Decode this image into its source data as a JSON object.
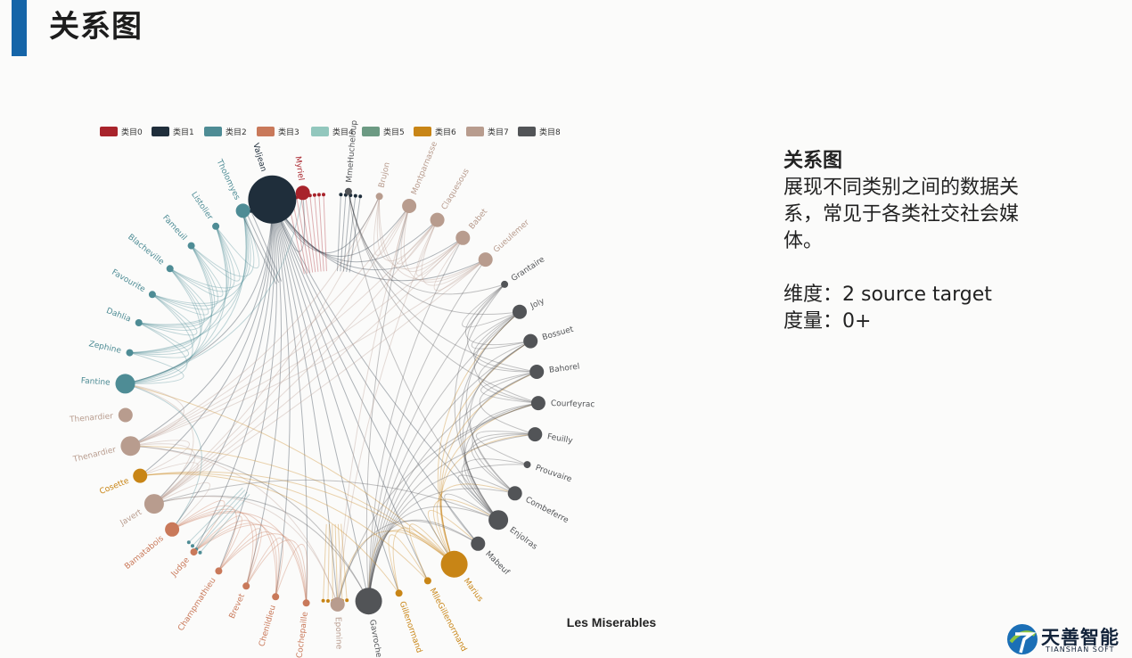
{
  "page": {
    "title": "关系图"
  },
  "side_panel": {
    "heading": "关系图",
    "description": "展现不同类别之间的数据关系，常见于各类社交社会媒体。",
    "dimension": "维度：2 source target",
    "measure": "度量：0+"
  },
  "logo": {
    "name": "天善智能",
    "subtitle": "TIANSHAN SOFT"
  },
  "diagram": {
    "title": "Les Miserables",
    "legend": [
      {
        "name": "类目0",
        "color": "#a8232b"
      },
      {
        "name": "类目1",
        "color": "#1f2e3b"
      },
      {
        "name": "类目2",
        "color": "#4e8c95"
      },
      {
        "name": "类目3",
        "color": "#c9795a"
      },
      {
        "name": "类目4",
        "color": "#92c7bd"
      },
      {
        "name": "类目5",
        "color": "#6c9a83"
      },
      {
        "name": "类目6",
        "color": "#c88516"
      },
      {
        "name": "类目7",
        "color": "#b89c8e"
      },
      {
        "name": "类目8",
        "color": "#525457"
      }
    ],
    "nodes": [
      {
        "name": "Myriel",
        "category": 0,
        "size": 2
      },
      {
        "name": "Valjean",
        "category": 1,
        "size": 7
      },
      {
        "name": "Tholomyes",
        "category": 2,
        "size": 2
      },
      {
        "name": "Listolier",
        "category": 2,
        "size": 1
      },
      {
        "name": "Fameuil",
        "category": 2,
        "size": 1
      },
      {
        "name": "Blacheville",
        "category": 2,
        "size": 1
      },
      {
        "name": "Favourite",
        "category": 2,
        "size": 1
      },
      {
        "name": "Dahlia",
        "category": 2,
        "size": 1
      },
      {
        "name": "Zephine",
        "category": 2,
        "size": 1
      },
      {
        "name": "Fantine",
        "category": 2,
        "size": 3
      },
      {
        "name": "Thenardier",
        "category": 7,
        "size": 2
      },
      {
        "name": "Thenardier",
        "category": 7,
        "size": 3
      },
      {
        "name": "Cosette",
        "category": 6,
        "size": 2
      },
      {
        "name": "Javert",
        "category": 7,
        "size": 3
      },
      {
        "name": "Bamatabois",
        "category": 3,
        "size": 2
      },
      {
        "name": "Judge",
        "category": 3,
        "size": 1
      },
      {
        "name": "Champmathieu",
        "category": 3,
        "size": 1
      },
      {
        "name": "Brevet",
        "category": 3,
        "size": 1
      },
      {
        "name": "Chenildieu",
        "category": 3,
        "size": 1
      },
      {
        "name": "Cochepaille",
        "category": 3,
        "size": 1
      },
      {
        "name": "Eponine",
        "category": 7,
        "size": 2
      },
      {
        "name": "Gavroche",
        "category": 8,
        "size": 4
      },
      {
        "name": "Gillenormand",
        "category": 6,
        "size": 1
      },
      {
        "name": "MlleGillenormand",
        "category": 6,
        "size": 1
      },
      {
        "name": "Marius",
        "category": 6,
        "size": 4
      },
      {
        "name": "Mabeuf",
        "category": 8,
        "size": 2
      },
      {
        "name": "Enjolras",
        "category": 8,
        "size": 3
      },
      {
        "name": "Combeferre",
        "category": 8,
        "size": 2
      },
      {
        "name": "Prouvaire",
        "category": 8,
        "size": 1
      },
      {
        "name": "Feuilly",
        "category": 8,
        "size": 2
      },
      {
        "name": "Courfeyrac",
        "category": 8,
        "size": 2
      },
      {
        "name": "Bahorel",
        "category": 8,
        "size": 2
      },
      {
        "name": "Bossuet",
        "category": 8,
        "size": 2
      },
      {
        "name": "Joly",
        "category": 8,
        "size": 2
      },
      {
        "name": "Grantaire",
        "category": 8,
        "size": 1
      },
      {
        "name": "Gueulemer",
        "category": 7,
        "size": 2
      },
      {
        "name": "Babet",
        "category": 7,
        "size": 2
      },
      {
        "name": "Claquesous",
        "category": 7,
        "size": 2
      },
      {
        "name": "Montparnasse",
        "category": 7,
        "size": 2
      },
      {
        "name": "Brujon",
        "category": 7,
        "size": 1
      },
      {
        "name": "MmeHucheloup",
        "category": 8,
        "size": 1
      }
    ],
    "links": [
      [
        "Valjean",
        "Myriel"
      ],
      [
        "Valjean",
        "Fantine"
      ],
      [
        "Valjean",
        "Cosette"
      ],
      [
        "Valjean",
        "Javert"
      ],
      [
        "Valjean",
        "Marius"
      ],
      [
        "Valjean",
        "Gavroche"
      ],
      [
        "Valjean",
        "Thenardier"
      ],
      [
        "Valjean",
        "Eponine"
      ],
      [
        "Valjean",
        "Bamatabois"
      ],
      [
        "Valjean",
        "Judge"
      ],
      [
        "Valjean",
        "Champmathieu"
      ],
      [
        "Valjean",
        "Brevet"
      ],
      [
        "Valjean",
        "Chenildieu"
      ],
      [
        "Valjean",
        "Cochepaille"
      ],
      [
        "Valjean",
        "Enjolras"
      ],
      [
        "Valjean",
        "Mabeuf"
      ],
      [
        "Valjean",
        "Gillenormand"
      ],
      [
        "Valjean",
        "MlleGillenormand"
      ],
      [
        "Valjean",
        "Gueulemer"
      ],
      [
        "Valjean",
        "Babet"
      ],
      [
        "Valjean",
        "Claquesous"
      ],
      [
        "Valjean",
        "Montparnasse"
      ],
      [
        "Valjean",
        "Brujon"
      ],
      [
        "Marius",
        "Enjolras"
      ],
      [
        "Marius",
        "Combeferre"
      ],
      [
        "Marius",
        "Courfeyrac"
      ],
      [
        "Marius",
        "Feuilly"
      ],
      [
        "Marius",
        "Bahorel"
      ],
      [
        "Marius",
        "Bossuet"
      ],
      [
        "Marius",
        "Joly"
      ],
      [
        "Marius",
        "Gavroche"
      ],
      [
        "Marius",
        "Eponine"
      ],
      [
        "Marius",
        "Cosette"
      ],
      [
        "Marius",
        "Gillenormand"
      ],
      [
        "Marius",
        "MlleGillenormand"
      ],
      [
        "Marius",
        "Mabeuf"
      ],
      [
        "Marius",
        "Thenardier"
      ],
      [
        "Marius",
        "Fantine"
      ],
      [
        "Gavroche",
        "Enjolras"
      ],
      [
        "Gavroche",
        "Combeferre"
      ],
      [
        "Gavroche",
        "Courfeyrac"
      ],
      [
        "Gavroche",
        "Bahorel"
      ],
      [
        "Gavroche",
        "Bossuet"
      ],
      [
        "Gavroche",
        "Joly"
      ],
      [
        "Gavroche",
        "Grantaire"
      ],
      [
        "Gavroche",
        "Mabeuf"
      ],
      [
        "Gavroche",
        "Prouvaire"
      ],
      [
        "Gavroche",
        "Feuilly"
      ],
      [
        "Gavroche",
        "Javert"
      ],
      [
        "Gavroche",
        "Thenardier"
      ],
      [
        "Gavroche",
        "Gueulemer"
      ],
      [
        "Gavroche",
        "Babet"
      ],
      [
        "Gavroche",
        "Montparnasse"
      ],
      [
        "Enjolras",
        "Combeferre"
      ],
      [
        "Enjolras",
        "Prouvaire"
      ],
      [
        "Enjolras",
        "Feuilly"
      ],
      [
        "Enjolras",
        "Courfeyrac"
      ],
      [
        "Enjolras",
        "Bahorel"
      ],
      [
        "Enjolras",
        "Bossuet"
      ],
      [
        "Enjolras",
        "Joly"
      ],
      [
        "Enjolras",
        "Grantaire"
      ],
      [
        "Enjolras",
        "Mabeuf"
      ],
      [
        "Enjolras",
        "MmeHucheloup"
      ],
      [
        "Enjolras",
        "Javert"
      ],
      [
        "Combeferre",
        "Courfeyrac"
      ],
      [
        "Combeferre",
        "Bossuet"
      ],
      [
        "Combeferre",
        "Joly"
      ],
      [
        "Combeferre",
        "Feuilly"
      ],
      [
        "Courfeyrac",
        "Bossuet"
      ],
      [
        "Courfeyrac",
        "Joly"
      ],
      [
        "Courfeyrac",
        "Bahorel"
      ],
      [
        "Courfeyrac",
        "Eponine"
      ],
      [
        "Courfeyrac",
        "MmeHucheloup"
      ],
      [
        "Bossuet",
        "Joly"
      ],
      [
        "Bossuet",
        "Grantaire"
      ],
      [
        "Bahorel",
        "Joly"
      ],
      [
        "Feuilly",
        "Bahorel"
      ],
      [
        "Prouvaire",
        "Feuilly"
      ],
      [
        "Javert",
        "Fantine"
      ],
      [
        "Javert",
        "Thenardier"
      ],
      [
        "Javert",
        "Cosette"
      ],
      [
        "Javert",
        "Bamatabois"
      ],
      [
        "Javert",
        "Eponine"
      ],
      [
        "Javert",
        "Gueulemer"
      ],
      [
        "Javert",
        "Claquesous"
      ],
      [
        "Javert",
        "Montparnasse"
      ],
      [
        "Javert",
        "Brujon"
      ],
      [
        "Javert",
        "Babet"
      ],
      [
        "Thenardier",
        "Fantine"
      ],
      [
        "Thenardier",
        "Cosette"
      ],
      [
        "Thenardier",
        "Eponine"
      ],
      [
        "Thenardier",
        "Gueulemer"
      ],
      [
        "Thenardier",
        "Babet"
      ],
      [
        "Thenardier",
        "Claquesous"
      ],
      [
        "Thenardier",
        "Montparnasse"
      ],
      [
        "Thenardier",
        "Brujon"
      ],
      [
        "Eponine",
        "Montparnasse"
      ],
      [
        "Eponine",
        "Claquesous"
      ],
      [
        "Fantine",
        "Tholomyes"
      ],
      [
        "Fantine",
        "Listolier"
      ],
      [
        "Fantine",
        "Fameuil"
      ],
      [
        "Fantine",
        "Blacheville"
      ],
      [
        "Fantine",
        "Favourite"
      ],
      [
        "Fantine",
        "Dahlia"
      ],
      [
        "Fantine",
        "Zephine"
      ],
      [
        "Fantine",
        "Bamatabois"
      ],
      [
        "Fantine",
        "Myriel"
      ],
      [
        "Tholomyes",
        "Listolier"
      ],
      [
        "Tholomyes",
        "Fameuil"
      ],
      [
        "Tholomyes",
        "Blacheville"
      ],
      [
        "Tholomyes",
        "Favourite"
      ],
      [
        "Tholomyes",
        "Dahlia"
      ],
      [
        "Tholomyes",
        "Zephine"
      ],
      [
        "Listolier",
        "Fameuil"
      ],
      [
        "Listolier",
        "Blacheville"
      ],
      [
        "Listolier",
        "Favourite"
      ],
      [
        "Listolier",
        "Dahlia"
      ],
      [
        "Listolier",
        "Zephine"
      ],
      [
        "Fameuil",
        "Blacheville"
      ],
      [
        "Fameuil",
        "Favourite"
      ],
      [
        "Fameuil",
        "Dahlia"
      ],
      [
        "Fameuil",
        "Zephine"
      ],
      [
        "Blacheville",
        "Favourite"
      ],
      [
        "Blacheville",
        "Dahlia"
      ],
      [
        "Blacheville",
        "Zephine"
      ],
      [
        "Favourite",
        "Dahlia"
      ],
      [
        "Favourite",
        "Zephine"
      ],
      [
        "Dahlia",
        "Zephine"
      ],
      [
        "Judge",
        "Champmathieu"
      ],
      [
        "Judge",
        "Brevet"
      ],
      [
        "Judge",
        "Chenildieu"
      ],
      [
        "Judge",
        "Cochepaille"
      ],
      [
        "Judge",
        "Bamatabois"
      ],
      [
        "Champmathieu",
        "Brevet"
      ],
      [
        "Champmathieu",
        "Chenildieu"
      ],
      [
        "Champmathieu",
        "Cochepaille"
      ],
      [
        "Champmathieu",
        "Bamatabois"
      ],
      [
        "Brevet",
        "Chenildieu"
      ],
      [
        "Brevet",
        "Cochepaille"
      ],
      [
        "Brevet",
        "Bamatabois"
      ],
      [
        "Chenildieu",
        "Cochepaille"
      ],
      [
        "Chenildieu",
        "Bamatabois"
      ],
      [
        "Cochepaille",
        "Bamatabois"
      ],
      [
        "Gueulemer",
        "Babet"
      ],
      [
        "Gueulemer",
        "Claquesous"
      ],
      [
        "Gueulemer",
        "Montparnasse"
      ],
      [
        "Gueulemer",
        "Brujon"
      ],
      [
        "Babet",
        "Claquesous"
      ],
      [
        "Babet",
        "Montparnasse"
      ],
      [
        "Babet",
        "Brujon"
      ],
      [
        "Claquesous",
        "Montparnasse"
      ],
      [
        "Claquesous",
        "Brujon"
      ],
      [
        "Montparnasse",
        "Brujon"
      ],
      [
        "Cosette",
        "Gillenormand"
      ],
      [
        "Cosette",
        "MlleGillenormand"
      ],
      [
        "Gillenormand",
        "MlleGillenormand"
      ],
      [
        "Mabeuf",
        "Eponine"
      ],
      [
        "Grantaire",
        "Joly"
      ],
      [
        "Grantaire",
        "Bahorel"
      ],
      [
        "Grantaire",
        "MmeHucheloup"
      ],
      [
        "Bahorel",
        "MmeHucheloup"
      ],
      [
        "Joly",
        "MmeHucheloup"
      ]
    ]
  }
}
